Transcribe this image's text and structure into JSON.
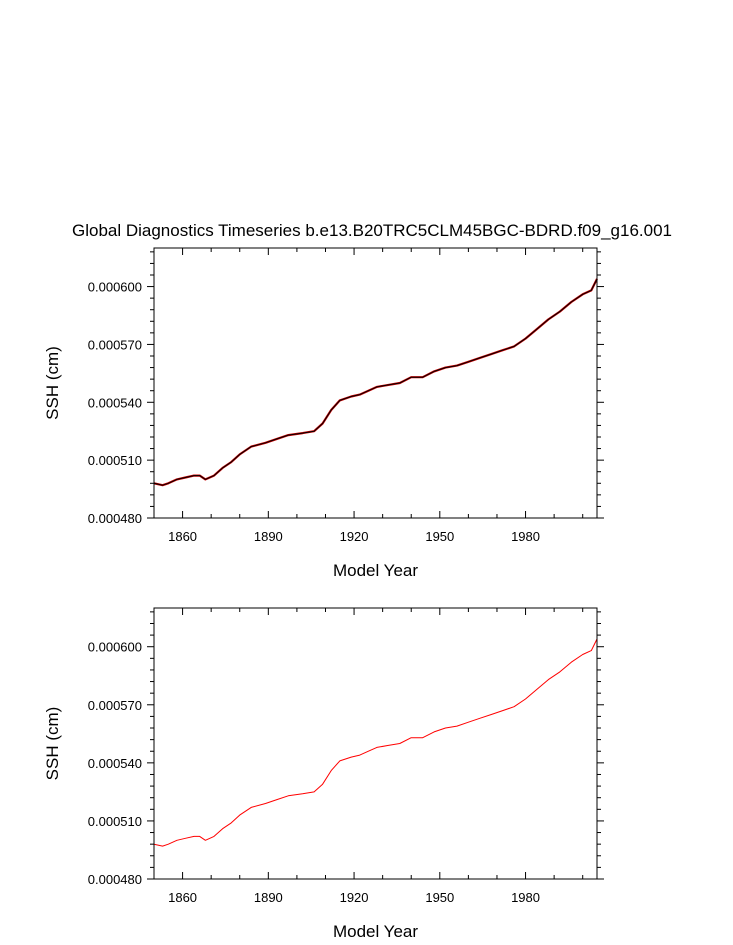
{
  "chart_data": [
    {
      "type": "line",
      "title": "Global Diagnostics Timeseries b.e13.B20TRC5CLM45BGC-BDRD.f09_g16.001",
      "xlabel": "Model Year",
      "ylabel": "SSH (cm)",
      "xlim": [
        1850,
        2005
      ],
      "ylim": [
        0.00048,
        0.00062
      ],
      "xticks": [
        1860,
        1890,
        1920,
        1950,
        1980
      ],
      "xtick_labels": [
        "1860",
        "1890",
        "1920",
        "1950",
        "1980"
      ],
      "yticks": [
        0.00048,
        0.00051,
        0.00054,
        0.00057,
        0.0006
      ],
      "ytick_labels": [
        "0.000480",
        "0.000510",
        "0.000540",
        "0.000570",
        "0.000600"
      ],
      "grid": false,
      "series": [
        {
          "color": "#000000",
          "overlay_color": "#cc0000",
          "x": [
            1850,
            1853,
            1855,
            1858,
            1861,
            1864,
            1866,
            1868,
            1871,
            1874,
            1877,
            1880,
            1884,
            1889,
            1893,
            1897,
            1902,
            1906,
            1909,
            1912,
            1915,
            1919,
            1922,
            1925,
            1928,
            1932,
            1936,
            1940,
            1944,
            1948,
            1952,
            1956,
            1960,
            1964,
            1968,
            1972,
            1976,
            1980,
            1984,
            1988,
            1992,
            1996,
            2000,
            2003,
            2005
          ],
          "y": [
            0.000498,
            0.000497,
            0.000498,
            0.0005,
            0.000501,
            0.000502,
            0.000502,
            0.0005,
            0.000502,
            0.000506,
            0.000509,
            0.000513,
            0.000517,
            0.000519,
            0.000521,
            0.000523,
            0.000524,
            0.000525,
            0.000529,
            0.000536,
            0.000541,
            0.000543,
            0.000544,
            0.000546,
            0.000548,
            0.000549,
            0.00055,
            0.000553,
            0.000553,
            0.000556,
            0.000558,
            0.000559,
            0.000561,
            0.000563,
            0.000565,
            0.000567,
            0.000569,
            0.000573,
            0.000578,
            0.000583,
            0.000587,
            0.000592,
            0.000596,
            0.000598,
            0.000604
          ]
        }
      ]
    },
    {
      "type": "line",
      "xlabel": "Model Year",
      "ylabel": "SSH (cm)",
      "xlim": [
        1850,
        2005
      ],
      "ylim": [
        0.00048,
        0.00062
      ],
      "xticks": [
        1860,
        1890,
        1920,
        1950,
        1980
      ],
      "xtick_labels": [
        "1860",
        "1890",
        "1920",
        "1950",
        "1980"
      ],
      "yticks": [
        0.00048,
        0.00051,
        0.00054,
        0.00057,
        0.0006
      ],
      "ytick_labels": [
        "0.000480",
        "0.000510",
        "0.000540",
        "0.000570",
        "0.000600"
      ],
      "grid": false,
      "series": [
        {
          "color": "#ff0000",
          "x": [
            1850,
            1853,
            1855,
            1858,
            1861,
            1864,
            1866,
            1868,
            1871,
            1874,
            1877,
            1880,
            1884,
            1889,
            1893,
            1897,
            1902,
            1906,
            1909,
            1912,
            1915,
            1919,
            1922,
            1925,
            1928,
            1932,
            1936,
            1940,
            1944,
            1948,
            1952,
            1956,
            1960,
            1964,
            1968,
            1972,
            1976,
            1980,
            1984,
            1988,
            1992,
            1996,
            2000,
            2003,
            2005
          ],
          "y": [
            0.000498,
            0.000497,
            0.000498,
            0.0005,
            0.000501,
            0.000502,
            0.000502,
            0.0005,
            0.000502,
            0.000506,
            0.000509,
            0.000513,
            0.000517,
            0.000519,
            0.000521,
            0.000523,
            0.000524,
            0.000525,
            0.000529,
            0.000536,
            0.000541,
            0.000543,
            0.000544,
            0.000546,
            0.000548,
            0.000549,
            0.00055,
            0.000553,
            0.000553,
            0.000556,
            0.000558,
            0.000559,
            0.000561,
            0.000563,
            0.000565,
            0.000567,
            0.000569,
            0.000573,
            0.000578,
            0.000583,
            0.000587,
            0.000592,
            0.000596,
            0.000598,
            0.000604
          ]
        }
      ]
    }
  ]
}
